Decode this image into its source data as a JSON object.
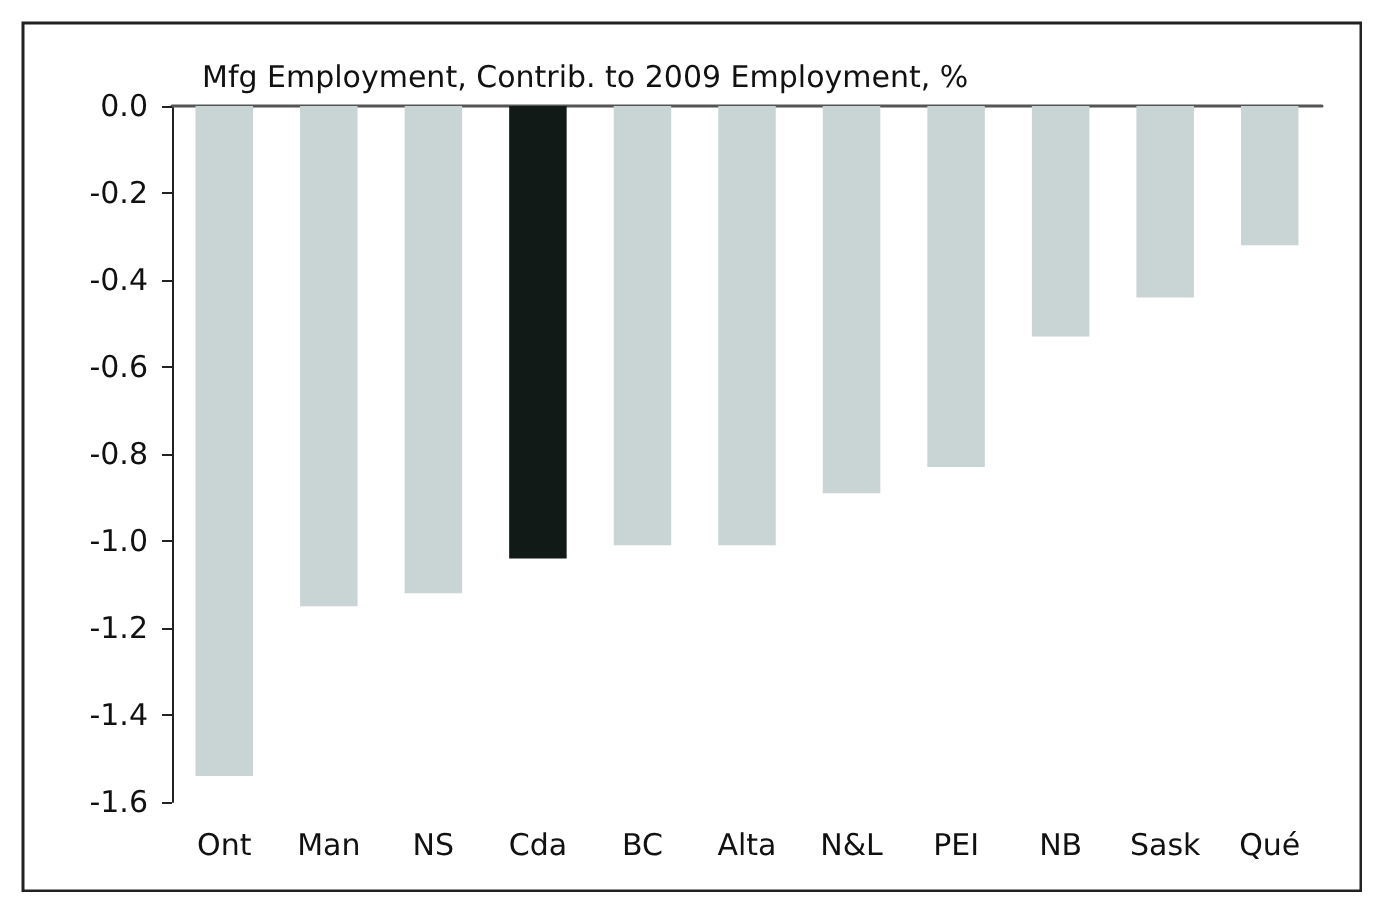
{
  "chart_data": {
    "type": "bar",
    "title": "Mfg Employment, Contrib. to 2009 Employment, %",
    "categories": [
      "Ont",
      "Man",
      "NS",
      "Cda",
      "BC",
      "Alta",
      "N&L",
      "PEI",
      "NB",
      "Sask",
      "Qué"
    ],
    "values": [
      -1.54,
      -1.15,
      -1.12,
      -1.04,
      -1.01,
      -1.01,
      -0.89,
      -0.83,
      -0.53,
      -0.44,
      -0.32
    ],
    "colors": [
      "#c9d4d4",
      "#c9d4d4",
      "#c9d4d4",
      "#111a17",
      "#c9d4d4",
      "#c9d4d4",
      "#c9d4d4",
      "#c9d4d4",
      "#c9d4d4",
      "#c9d4d4",
      "#c9d4d4"
    ],
    "ylim": [
      -1.6,
      0
    ],
    "yticks": [
      -1.6,
      -1.4,
      -1.2,
      {
        "value": -1,
        "label": "-1.0"
      },
      -0.8,
      -0.6,
      -0.4,
      -0.2,
      {
        "value": 0,
        "label": "0.0"
      }
    ],
    "grid": false
  }
}
